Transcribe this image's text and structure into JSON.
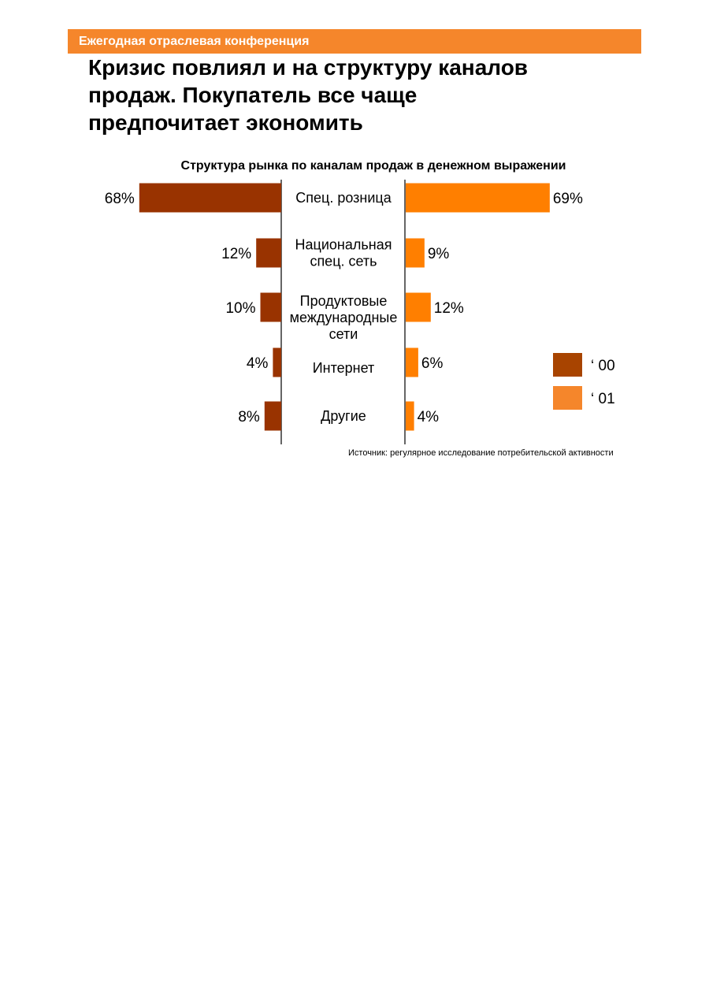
{
  "header": {
    "banner_text": "Ежегодная отраслевая конференция",
    "title_lines": [
      "Кризис повлиял и на структуру каналов",
      "продаж. Покупатель все чаще",
      "предпочитает экономить"
    ]
  },
  "chart_data": {
    "type": "bar",
    "title": "Структура рынка по каналам продаж в денежном выражении",
    "categories": [
      [
        "Спец. розница"
      ],
      [
        "Национальная",
        "спец. сеть"
      ],
      [
        "Продуктовые",
        "международные",
        "сети"
      ],
      [
        "Интернет"
      ],
      [
        "Другие"
      ]
    ],
    "series": [
      {
        "name": "‘ 00",
        "values": [
          68,
          12,
          10,
          4,
          8
        ],
        "labels": [
          "68%",
          "12%",
          "10%",
          "4%",
          "8%"
        ],
        "color": "#993300"
      },
      {
        "name": "‘ 01",
        "values": [
          69,
          9,
          12,
          6,
          4
        ],
        "labels": [
          "69%",
          "9%",
          "12%",
          "6%",
          "4%"
        ],
        "color": "#FF7F00"
      }
    ],
    "legend_colors": [
      "#A84400",
      "#F5862B"
    ],
    "legend_position": "right",
    "grid": false
  },
  "footer": {
    "source": "Источник: регулярное исследование потребительской активности"
  }
}
